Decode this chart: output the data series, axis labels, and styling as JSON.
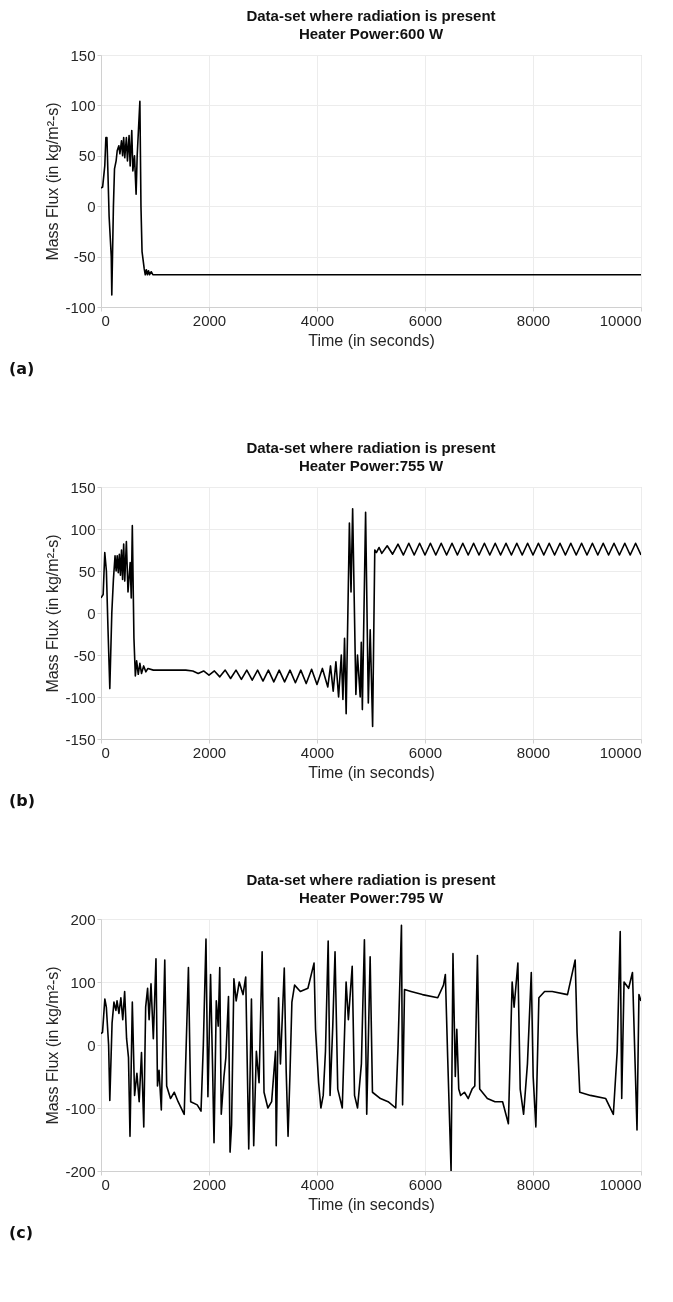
{
  "chart_data": [
    {
      "type": "line",
      "title": "Data-set where radiation is present",
      "subtitle": "Heater Power:600 W",
      "xlabel": "Time (in seconds)",
      "ylabel": "Mass Flux (in kg/m²-s)",
      "annotations": [
        "(a)"
      ],
      "xlim": [
        0,
        10000
      ],
      "xticks": [
        0,
        2000,
        4000,
        6000,
        8000,
        10000
      ],
      "ylim": [
        -100,
        150
      ],
      "yticks": [
        -100,
        -50,
        0,
        50,
        100,
        150
      ],
      "grid": true,
      "series": [
        {
          "color": "#000000",
          "x": [
            0,
            30,
            70,
            90,
            110,
            130,
            150,
            190,
            200,
            230,
            250,
            280,
            300,
            330,
            350,
            380,
            400,
            420,
            440,
            470,
            490,
            520,
            540,
            570,
            590,
            620,
            650,
            670,
            720,
            740,
            760,
            800,
            820,
            840,
            860,
            880,
            900,
            930,
            960,
            1000,
            10000
          ],
          "values": [
            18,
            19,
            40,
            68,
            68,
            30,
            -10,
            -50,
            -88,
            0,
            37,
            45,
            55,
            60,
            52,
            65,
            50,
            68,
            48,
            68,
            45,
            70,
            40,
            75,
            35,
            50,
            12,
            50,
            104,
            0,
            -45,
            -62,
            -68,
            -63,
            -68,
            -64,
            -68,
            -65,
            -68,
            -68,
            -68
          ]
        }
      ]
    },
    {
      "type": "line",
      "title": "Data-set where radiation is present",
      "subtitle": "Heater Power:755 W",
      "xlabel": "Time (in seconds)",
      "ylabel": "Mass Flux (in kg/m²-s)",
      "annotations": [
        "(b)"
      ],
      "xlim": [
        0,
        10000
      ],
      "xticks": [
        0,
        2000,
        4000,
        6000,
        8000,
        10000
      ],
      "ylim": [
        -150,
        150
      ],
      "yticks": [
        -150,
        -100,
        -50,
        0,
        50,
        100,
        150
      ],
      "grid": true,
      "series": [
        {
          "color": "#000000",
          "x": [
            0,
            40,
            70,
            100,
            130,
            163,
            200,
            230,
            260,
            280,
            300,
            320,
            340,
            360,
            380,
            400,
            420,
            440,
            470,
            500,
            540,
            560,
            580,
            610,
            636,
            660,
            690,
            720,
            750,
            790,
            830,
            870,
            970,
            1570,
            1700,
            1800,
            1900,
            2000,
            2100,
            2200,
            2300,
            2400,
            2500,
            2600,
            2700,
            2800,
            2900,
            3000,
            3100,
            3200,
            3300,
            3400,
            3500,
            3600,
            3700,
            3800,
            3900,
            4000,
            4100,
            4200,
            4250,
            4300,
            4350,
            4400,
            4450,
            4480,
            4510,
            4540,
            4600,
            4630,
            4660,
            4720,
            4750,
            4800,
            4820,
            4840,
            4900,
            4950,
            4985,
            5030,
            5070,
            5100,
            5150,
            5200,
            5300,
            5400,
            5500,
            5600,
            5700,
            5800,
            5900,
            6000,
            6100,
            6200,
            6300,
            6400,
            6500,
            6600,
            6700,
            6800,
            6900,
            7000,
            7100,
            7200,
            7300,
            7400,
            7500,
            7600,
            7700,
            7800,
            7900,
            8000,
            8100,
            8200,
            8300,
            8400,
            8500,
            8600,
            8700,
            8800,
            8900,
            9000,
            9100,
            9200,
            9300,
            9400,
            9500,
            9600,
            9700,
            9800,
            9900,
            10000
          ],
          "values": [
            18,
            22,
            72,
            50,
            -20,
            -90,
            0,
            40,
            68,
            50,
            68,
            48,
            70,
            45,
            75,
            40,
            82,
            38,
            85,
            25,
            60,
            18,
            104,
            -30,
            -75,
            -57,
            -73,
            -60,
            -72,
            -63,
            -70,
            -66,
            -68,
            -68,
            -69,
            -72,
            -69,
            -74,
            -69,
            -76,
            -68,
            -78,
            -68,
            -79,
            -68,
            -80,
            -68,
            -81,
            -68,
            -82,
            -68,
            -82,
            -68,
            -83,
            -68,
            -84,
            -67,
            -85,
            -66,
            -88,
            -63,
            -93,
            -58,
            -100,
            -50,
            -103,
            -30,
            -120,
            107,
            25,
            124,
            -97,
            -50,
            -100,
            -35,
            -115,
            120,
            -107,
            -20,
            -135,
            75,
            72,
            78,
            71,
            80,
            70,
            82,
            69,
            83,
            69,
            83,
            69,
            83,
            69,
            83,
            69,
            83,
            69,
            83,
            69,
            83,
            69,
            83,
            69,
            83,
            69,
            83,
            69,
            83,
            69,
            83,
            69,
            83,
            69,
            83,
            69,
            83,
            69,
            83,
            69,
            83,
            69,
            83,
            69,
            83,
            69,
            83,
            69,
            83,
            69,
            83,
            69
          ]
        }
      ]
    },
    {
      "type": "line",
      "title": "Data-set where radiation is present",
      "subtitle": "Heater Power:795 W",
      "xlabel": "Time (in seconds)",
      "ylabel": "Mass Flux (in kg/m²-s)",
      "annotations": [
        "(c)"
      ],
      "xlim": [
        0,
        10000
      ],
      "xticks": [
        0,
        2000,
        4000,
        6000,
        8000,
        10000
      ],
      "ylim": [
        -200,
        200
      ],
      "yticks": [
        -200,
        -100,
        0,
        100,
        200
      ],
      "grid": true,
      "series": [
        {
          "color": "#000000",
          "x": [
            0,
            28,
            71,
            99,
            141,
            163,
            205,
            240,
            276,
            297,
            332,
            368,
            403,
            438,
            474,
            509,
            537,
            580,
            622,
            665,
            707,
            750,
            792,
            827,
            863,
            891,
            926,
            969,
            1018,
            1046,
            1075,
            1117,
            1181,
            1216,
            1287,
            1357,
            1428,
            1541,
            1619,
            1661,
            1782,
            1852,
            1895,
            1944,
            1980,
            2029,
            2065,
            2093,
            2135,
            2171,
            2199,
            2227,
            2277,
            2312,
            2361,
            2390,
            2418,
            2461,
            2503,
            2560,
            2630,
            2680,
            2736,
            2786,
            2828,
            2877,
            2927,
            2984,
            3019,
            3090,
            3160,
            3231,
            3245,
            3288,
            3323,
            3394,
            3429,
            3464,
            3500,
            3535,
            3585,
            3691,
            3832,
            3945,
            3973,
            4030,
            4072,
            4115,
            4157,
            4207,
            4242,
            4292,
            4334,
            4384,
            4468,
            4539,
            4581,
            4652,
            4695,
            4751,
            4822,
            4878,
            4921,
            4984,
            5027,
            5175,
            5317,
            5458,
            5500,
            5564,
            5585,
            5621,
            5741,
            5953,
            6236,
            6342,
            6377,
            6420,
            6483,
            6518,
            6561,
            6589,
            6625,
            6660,
            6731,
            6801,
            6872,
            6922,
            6971,
            7013,
            7155,
            7296,
            7437,
            7544,
            7614,
            7650,
            7720,
            7763,
            7826,
            7897,
            7968,
            8003,
            8053,
            8109,
            8215,
            8356,
            8639,
            8781,
            8816,
            8866,
            9064,
            9347,
            9488,
            9559,
            9615,
            9643,
            9686,
            9771,
            9842,
            9891,
            9926,
            9962,
            10000
          ],
          "values": [
            18,
            20,
            73,
            60,
            0,
            -88,
            35,
            68,
            55,
            70,
            50,
            75,
            40,
            85,
            10,
            -20,
            -145,
            68,
            -80,
            -45,
            -90,
            -12,
            -130,
            60,
            90,
            40,
            97,
            10,
            137,
            -65,
            -40,
            -103,
            135,
            -65,
            -85,
            -75,
            -90,
            -110,
            123,
            -90,
            -95,
            -105,
            0,
            168,
            -82,
            112,
            -30,
            -155,
            70,
            30,
            123,
            -110,
            -50,
            -20,
            77,
            -170,
            -127,
            105,
            70,
            100,
            80,
            108,
            -165,
            73,
            -160,
            -10,
            -60,
            148,
            -75,
            -100,
            -90,
            -10,
            -160,
            75,
            -30,
            122,
            -40,
            -145,
            -45,
            68,
            95,
            85,
            90,
            130,
            25,
            -60,
            -100,
            -80,
            -10,
            165,
            -80,
            30,
            148,
            -70,
            -100,
            100,
            40,
            125,
            -80,
            -100,
            -30,
            167,
            -110,
            140,
            -75,
            -85,
            -90,
            -100,
            -5,
            190,
            -95,
            88,
            85,
            80,
            75,
            95,
            112,
            -20,
            -200,
            145,
            -50,
            25,
            -70,
            -80,
            -75,
            -85,
            -70,
            -65,
            142,
            -70,
            -85,
            -90,
            -90,
            -125,
            100,
            60,
            130,
            -70,
            -110,
            -30,
            115,
            -50,
            -130,
            75,
            85,
            85,
            80,
            135,
            20,
            -75,
            -80,
            -85,
            -110,
            -10,
            180,
            -85,
            100,
            90,
            115,
            -30,
            -135,
            80,
            70
          ]
        }
      ]
    }
  ]
}
